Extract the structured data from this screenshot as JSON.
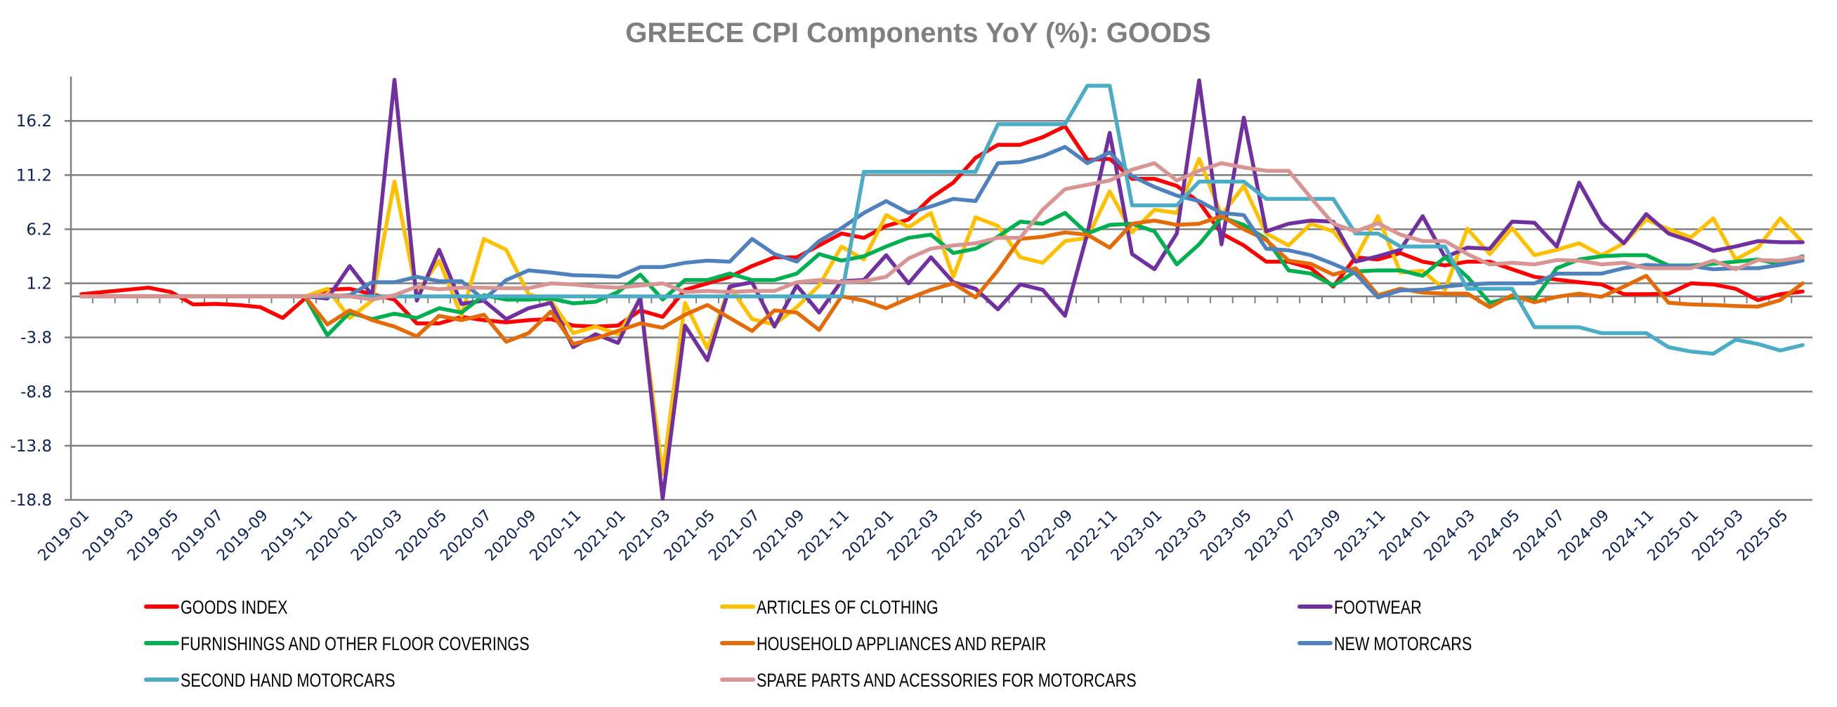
{
  "chart_data": {
    "type": "line",
    "title": "GREECE CPI Components YoY (%): GOODS",
    "xlabel": "",
    "ylabel": "",
    "ylim": [
      -18.8,
      20.3
    ],
    "yticks": [
      16.2,
      11.2,
      6.2,
      1.2,
      -3.8,
      -8.8,
      -13.8,
      -18.8
    ],
    "grid": true,
    "legend_position": "bottom",
    "x": [
      "2019-01",
      "2019-02",
      "2019-03",
      "2019-04",
      "2019-05",
      "2019-06",
      "2019-07",
      "2019-08",
      "2019-09",
      "2019-10",
      "2019-11",
      "2019-12",
      "2020-01",
      "2020-02",
      "2020-03",
      "2020-04",
      "2020-05",
      "2020-06",
      "2020-07",
      "2020-08",
      "2020-09",
      "2020-10",
      "2020-11",
      "2020-12",
      "2021-01",
      "2021-02",
      "2021-03",
      "2021-04",
      "2021-05",
      "2021-06",
      "2021-07",
      "2021-08",
      "2021-09",
      "2021-10",
      "2021-11",
      "2021-12",
      "2022-01",
      "2022-02",
      "2022-03",
      "2022-04",
      "2022-05",
      "2022-06",
      "2022-07",
      "2022-08",
      "2022-09",
      "2022-10",
      "2022-11",
      "2022-12",
      "2023-01",
      "2023-02",
      "2023-03",
      "2023-04",
      "2023-05",
      "2023-06",
      "2023-07",
      "2023-08",
      "2023-09",
      "2023-10",
      "2023-11",
      "2023-12",
      "2024-01",
      "2024-02",
      "2024-03",
      "2024-04",
      "2024-05",
      "2024-06",
      "2024-07",
      "2024-08",
      "2024-09",
      "2024-10",
      "2024-11",
      "2024-12",
      "2025-01",
      "2025-02",
      "2025-03",
      "2025-04",
      "2025-05",
      "2025-06"
    ],
    "xtick_labels": [
      "2019-01",
      "2019-03",
      "2019-05",
      "2019-07",
      "2019-09",
      "2019-11",
      "2020-01",
      "2020-03",
      "2020-05",
      "2020-07",
      "2020-09",
      "2020-11",
      "2021-01",
      "2021-03",
      "2021-05",
      "2021-07",
      "2021-09",
      "2021-11",
      "2022-01",
      "2022-03",
      "2022-05",
      "2022-07",
      "2022-09",
      "2022-11",
      "2023-01",
      "2023-03",
      "2023-05",
      "2023-07",
      "2023-09",
      "2023-11",
      "2024-01",
      "2024-03",
      "2024-05",
      "2024-07",
      "2024-09",
      "2024-11",
      "2025-01",
      "2025-03",
      "2025-05"
    ],
    "series": [
      {
        "name": "GOODS INDEX",
        "color": "#ff0000",
        "values": [
          0.2,
          0.4,
          0.6,
          0.8,
          0.4,
          -0.75,
          -0.7,
          -0.8,
          -1.0,
          -2.0,
          -0.2,
          0.6,
          0.7,
          0.2,
          -0.3,
          -2.5,
          -2.5,
          -1.9,
          -2.2,
          -2.4,
          -2.2,
          -2.1,
          -2.7,
          -2.8,
          -2.7,
          -1.3,
          -1.9,
          0.6,
          1.2,
          1.8,
          2.8,
          3.6,
          3.6,
          4.7,
          5.8,
          5.4,
          6.5,
          7.1,
          9.1,
          10.5,
          12.8,
          14.0,
          14.0,
          14.7,
          15.7,
          12.6,
          12.7,
          10.85,
          10.85,
          10.2,
          8.7,
          5.8,
          4.7,
          3.2,
          3.2,
          2.6,
          0.9,
          3.6,
          3.4,
          4.0,
          3.2,
          2.85,
          3.2,
          3.2,
          2.5,
          1.8,
          1.55,
          1.3,
          1.1,
          0.2,
          0.2,
          0.25,
          1.2,
          1.1,
          0.7,
          -0.35,
          0.2,
          0.45
        ]
      },
      {
        "name": "ARTICLES OF CLOTHING",
        "color": "#ffc000",
        "values": [
          0,
          0,
          0,
          0,
          0,
          0,
          0,
          0,
          0,
          0,
          0,
          0.7,
          -2.0,
          -0.4,
          10.6,
          0.3,
          3.3,
          -1.8,
          5.3,
          4.3,
          0.2,
          -0.4,
          -3.4,
          -2.8,
          -3.5,
          -0.3,
          -16.4,
          -0.6,
          -4.8,
          0.9,
          -2.1,
          -2.6,
          -1.0,
          1.0,
          4.6,
          3.4,
          7.5,
          6.4,
          7.7,
          1.8,
          7.3,
          6.5,
          3.6,
          3.1,
          5.1,
          5.4,
          9.7,
          5.9,
          8.0,
          7.7,
          12.7,
          7.5,
          10.2,
          5.8,
          4.7,
          6.7,
          6.0,
          3.5,
          7.4,
          2.2,
          2.35,
          0.6,
          6.25,
          3.9,
          6.3,
          3.8,
          4.3,
          4.9,
          3.8,
          4.9,
          7.1,
          6.2,
          5.45,
          7.2,
          3.4,
          4.5,
          7.2,
          5.0
        ]
      },
      {
        "name": "FOOTWEAR",
        "color": "#7030a0",
        "values": [
          0,
          0,
          0,
          0,
          0,
          0,
          0,
          0,
          0,
          0,
          0,
          -0.2,
          2.8,
          0.1,
          20.0,
          -0.4,
          4.3,
          -0.7,
          -0.4,
          -2.1,
          -1.1,
          -0.6,
          -4.7,
          -3.5,
          -4.3,
          -0.1,
          -18.7,
          -2.7,
          -5.9,
          0.9,
          1.3,
          -2.8,
          1.0,
          -1.5,
          1.4,
          1.5,
          3.8,
          1.2,
          3.6,
          1.3,
          0.7,
          -1.2,
          1.1,
          0.6,
          -1.8,
          5.8,
          15.1,
          3.9,
          2.5,
          5.8,
          19.95,
          4.8,
          16.5,
          6.0,
          6.7,
          7.0,
          6.9,
          3.2,
          3.7,
          4.3,
          7.4,
          3.6,
          4.5,
          4.4,
          6.9,
          6.8,
          4.6,
          10.5,
          6.8,
          4.9,
          7.6,
          5.8,
          5.1,
          4.2,
          4.6,
          5.1,
          5.0,
          5.0
        ]
      },
      {
        "name": "FURNISHINGS AND OTHER FLOOR COVERINGS",
        "color": "#00b050",
        "values": [
          0,
          0,
          0,
          0,
          0,
          0,
          0,
          0,
          0,
          0,
          0,
          -3.6,
          -1.5,
          -2.1,
          -1.6,
          -2.0,
          -1.1,
          -1.5,
          0.1,
          -0.3,
          -0.3,
          -0.2,
          -0.65,
          -0.5,
          0.4,
          2.0,
          -0.3,
          1.5,
          1.5,
          2.1,
          1.5,
          1.5,
          2.1,
          3.9,
          3.3,
          3.7,
          4.6,
          5.4,
          5.7,
          4.0,
          4.4,
          5.5,
          6.9,
          6.7,
          7.7,
          5.8,
          6.6,
          6.7,
          6.0,
          2.95,
          4.8,
          7.3,
          6.6,
          5.3,
          2.4,
          2.1,
          1.0,
          2.3,
          2.4,
          2.4,
          1.9,
          3.6,
          1.8,
          -0.6,
          -0.1,
          -0.3,
          2.6,
          3.4,
          3.7,
          3.8,
          3.8,
          2.85,
          2.85,
          3.0,
          3.2,
          3.4,
          2.95,
          3.7
        ]
      },
      {
        "name": "HOUSEHOLD APPLIANCES AND REPAIR",
        "color": "#e36c09",
        "values": [
          0,
          0,
          0,
          0,
          0,
          0,
          0,
          0,
          0,
          0,
          0,
          -2.6,
          -1.3,
          -2.2,
          -2.8,
          -3.7,
          -1.8,
          -2.2,
          -1.7,
          -4.2,
          -3.4,
          -1.4,
          -4.4,
          -3.9,
          -3.2,
          -2.5,
          -2.9,
          -1.7,
          -0.8,
          -2.0,
          -3.2,
          -1.3,
          -1.5,
          -3.1,
          0.0,
          -0.4,
          -1.1,
          -0.2,
          0.6,
          1.2,
          -0.1,
          2.4,
          5.3,
          5.5,
          5.9,
          5.7,
          4.5,
          6.7,
          7.0,
          6.6,
          6.7,
          7.4,
          6.2,
          5.2,
          3.3,
          3.0,
          2.0,
          2.6,
          0.1,
          0.7,
          0.35,
          0.25,
          0.25,
          -1.0,
          0.1,
          -0.55,
          -0.05,
          0.25,
          -0.05,
          0.9,
          1.9,
          -0.6,
          -0.75,
          -0.8,
          -0.9,
          -0.95,
          -0.35,
          1.2
        ]
      },
      {
        "name": "NEW MOTORCARS",
        "color": "#4f81bd",
        "values": [
          0,
          0,
          0,
          0,
          0,
          0,
          0,
          0,
          0,
          0,
          0,
          0,
          0.1,
          1.3,
          1.3,
          1.8,
          1.4,
          1.4,
          -0.3,
          1.5,
          2.4,
          2.2,
          1.95,
          1.9,
          1.8,
          2.7,
          2.7,
          3.1,
          3.3,
          3.2,
          5.3,
          3.9,
          3.2,
          5.1,
          6.3,
          7.7,
          8.8,
          7.7,
          8.3,
          9.0,
          8.8,
          12.3,
          12.4,
          12.95,
          13.8,
          12.3,
          13.3,
          11.1,
          10.1,
          9.3,
          8.8,
          7.7,
          7.5,
          4.4,
          4.25,
          3.8,
          3.0,
          2.1,
          -0.1,
          0.55,
          0.6,
          0.9,
          1.1,
          1.2,
          1.2,
          1.2,
          2.1,
          2.1,
          2.1,
          2.6,
          2.9,
          2.8,
          2.8,
          2.5,
          2.6,
          2.6,
          2.9,
          3.3
        ]
      },
      {
        "name": "SECOND HAND MOTORCARS",
        "color": "#4bacc6",
        "values": [
          0,
          0,
          0,
          0,
          0,
          0,
          0,
          0,
          0,
          0,
          0,
          0,
          0,
          0,
          0,
          0,
          0,
          0,
          0,
          0,
          0,
          0,
          0,
          0,
          0,
          0,
          0,
          0,
          0,
          0,
          0,
          0,
          0,
          0,
          0,
          11.5,
          11.5,
          11.5,
          11.5,
          11.5,
          11.5,
          15.9,
          15.9,
          15.9,
          15.9,
          19.45,
          19.45,
          8.4,
          8.4,
          8.4,
          10.6,
          10.6,
          10.6,
          9.0,
          9.0,
          9.0,
          9.0,
          5.8,
          5.8,
          4.6,
          4.6,
          4.6,
          0.7,
          0.7,
          0.7,
          -2.85,
          -2.85,
          -2.85,
          -3.4,
          -3.4,
          -3.4,
          -4.7,
          -5.1,
          -5.3,
          -4.0,
          -4.4,
          -5.0,
          -4.5
        ]
      },
      {
        "name": "SPARE PARTS AND ACESSORIES FOR MOTORCARS",
        "color": "#d99594",
        "values": [
          0,
          0,
          0,
          0,
          0,
          0,
          0,
          0,
          0,
          0,
          0,
          0.15,
          0,
          -0.3,
          0.1,
          0.9,
          0.65,
          0.8,
          0.8,
          0.75,
          0.75,
          1.2,
          1.1,
          0.9,
          0.8,
          1.0,
          1.2,
          0.4,
          0.5,
          0.4,
          0.5,
          0.5,
          1.3,
          1.5,
          1.3,
          1.4,
          1.8,
          3.5,
          4.4,
          4.7,
          4.9,
          5.4,
          5.4,
          8.0,
          9.9,
          10.3,
          10.7,
          11.7,
          12.3,
          10.7,
          11.6,
          12.3,
          11.9,
          11.6,
          11.6,
          9.1,
          6.7,
          6.0,
          6.75,
          5.7,
          5.1,
          5.1,
          3.9,
          2.95,
          3.1,
          2.95,
          3.35,
          3.3,
          2.95,
          3.1,
          2.6,
          2.6,
          2.6,
          3.3,
          2.5,
          3.35,
          3.3,
          3.6
        ]
      }
    ]
  }
}
